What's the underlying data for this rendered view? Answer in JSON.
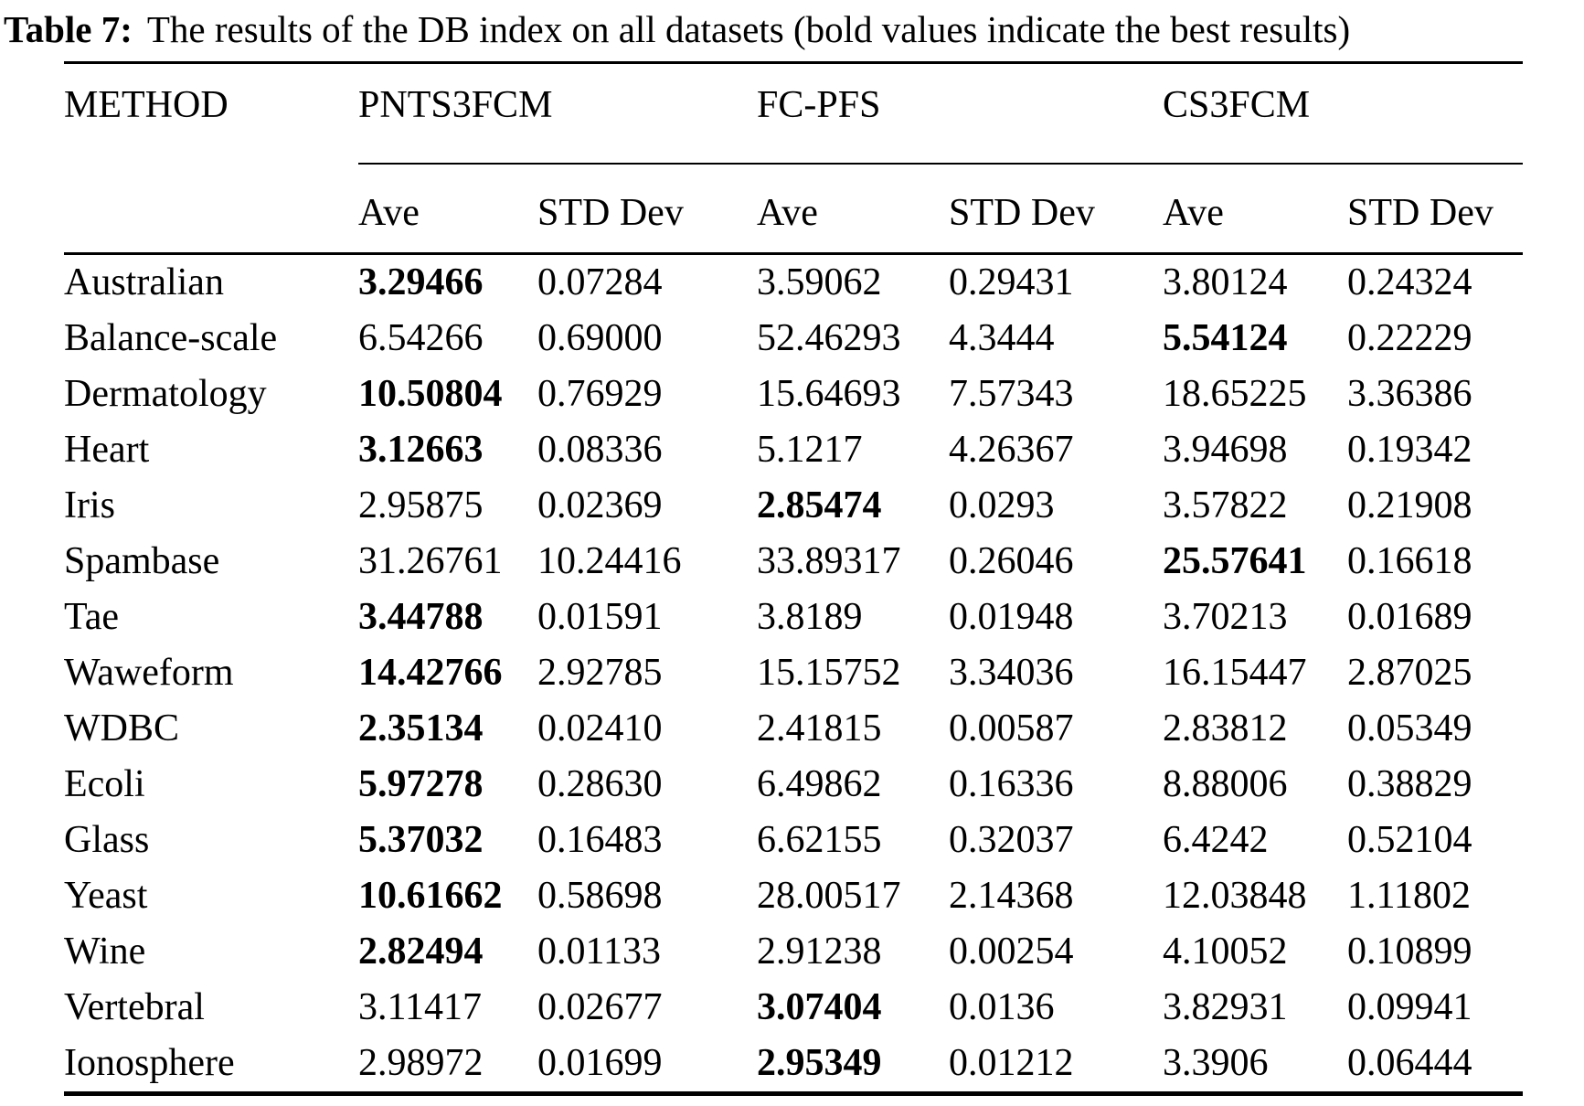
{
  "caption": {
    "label": "Table 7:",
    "text": "The results of the DB index on all datasets (bold values indicate the best results)"
  },
  "table": {
    "corner_header": "METHOD",
    "group_headers": [
      "PNTS3FCM",
      "FC-PFS",
      "CS3FCM"
    ],
    "sub_headers": [
      "Ave",
      "STD Dev",
      "Ave",
      "STD Dev",
      "Ave",
      "STD Dev"
    ],
    "rows": [
      {
        "dataset": "Australian",
        "values": [
          "3.29466",
          "0.07284",
          "3.59062",
          "0.29431",
          "3.80124",
          "0.24324"
        ],
        "bold_indices": [
          0
        ]
      },
      {
        "dataset": "Balance-scale",
        "values": [
          "6.54266",
          "0.69000",
          "52.46293",
          "4.3444",
          "5.54124",
          "0.22229"
        ],
        "bold_indices": [
          4
        ]
      },
      {
        "dataset": "Dermatology",
        "values": [
          "10.50804",
          "0.76929",
          "15.64693",
          "7.57343",
          "18.65225",
          "3.36386"
        ],
        "bold_indices": [
          0
        ]
      },
      {
        "dataset": "Heart",
        "values": [
          "3.12663",
          "0.08336",
          "5.1217",
          "4.26367",
          "3.94698",
          "0.19342"
        ],
        "bold_indices": [
          0
        ]
      },
      {
        "dataset": "Iris",
        "values": [
          "2.95875",
          "0.02369",
          "2.85474",
          "0.0293",
          "3.57822",
          "0.21908"
        ],
        "bold_indices": [
          2
        ]
      },
      {
        "dataset": "Spambase",
        "values": [
          "31.26761",
          "10.24416",
          "33.89317",
          "0.26046",
          "25.57641",
          "0.16618"
        ],
        "bold_indices": [
          4
        ]
      },
      {
        "dataset": "Tae",
        "values": [
          "3.44788",
          "0.01591",
          "3.8189",
          "0.01948",
          "3.70213",
          "0.01689"
        ],
        "bold_indices": [
          0
        ]
      },
      {
        "dataset": "Waweform",
        "values": [
          "14.42766",
          "2.92785",
          "15.15752",
          "3.34036",
          "16.15447",
          "2.87025"
        ],
        "bold_indices": [
          0
        ]
      },
      {
        "dataset": "WDBC",
        "values": [
          "2.35134",
          "0.02410",
          "2.41815",
          "0.00587",
          "2.83812",
          "0.05349"
        ],
        "bold_indices": [
          0
        ]
      },
      {
        "dataset": "Ecoli",
        "values": [
          "5.97278",
          "0.28630",
          "6.49862",
          "0.16336",
          "8.88006",
          "0.38829"
        ],
        "bold_indices": [
          0
        ]
      },
      {
        "dataset": "Glass",
        "values": [
          "5.37032",
          "0.16483",
          "6.62155",
          "0.32037",
          "6.4242",
          "0.52104"
        ],
        "bold_indices": [
          0
        ]
      },
      {
        "dataset": "Yeast",
        "values": [
          "10.61662",
          "0.58698",
          "28.00517",
          "2.14368",
          "12.03848",
          "1.11802"
        ],
        "bold_indices": [
          0
        ]
      },
      {
        "dataset": "Wine",
        "values": [
          "2.82494",
          "0.01133",
          "2.91238",
          "0.00254",
          "4.10052",
          "0.10899"
        ],
        "bold_indices": [
          0
        ]
      },
      {
        "dataset": "Vertebral",
        "values": [
          "3.11417",
          "0.02677",
          "3.07404",
          "0.0136",
          "3.82931",
          "0.09941"
        ],
        "bold_indices": [
          2
        ]
      },
      {
        "dataset": "Ionosphere",
        "values": [
          "2.98972",
          "0.01699",
          "2.95349",
          "0.01212",
          "3.3906",
          "0.06444"
        ],
        "bold_indices": [
          2
        ]
      }
    ]
  }
}
